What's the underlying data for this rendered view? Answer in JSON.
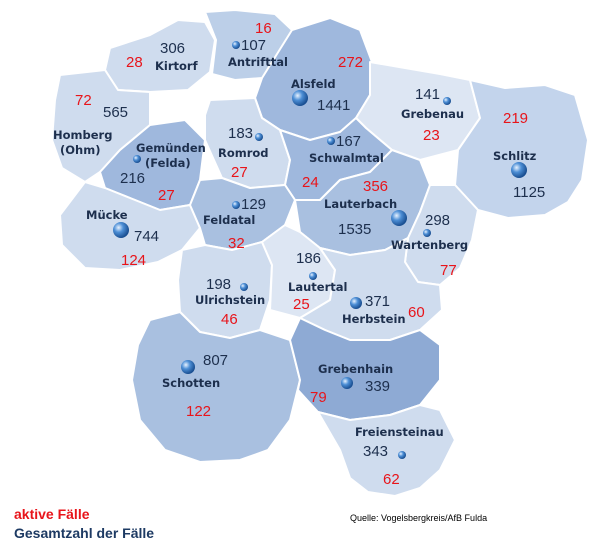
{
  "legend": {
    "active_label": "aktive Fälle",
    "total_label": "Gesamtzahl der Fälle"
  },
  "source": "Quelle: Vogelsbergkreis/AfB Fulda",
  "colors": {
    "active": "#e8141a",
    "total": "#1d2f4d",
    "region_light": "#cfdcee",
    "region_mid": "#a9c0e0",
    "region_dark": "#8eaad4"
  },
  "municipalities": [
    {
      "id": "kirtorf",
      "name": "Kirtorf",
      "total": "306",
      "active": "28"
    },
    {
      "id": "antrifttal",
      "name": "Antrifttal",
      "total": "107",
      "active": "16"
    },
    {
      "id": "alsfeld",
      "name": "Alsfeld",
      "total": "1441",
      "active": "272"
    },
    {
      "id": "grebenau",
      "name": "Grebenau",
      "total": "141",
      "active": "23"
    },
    {
      "id": "schlitz",
      "name": "Schlitz",
      "total": "1125",
      "active": "219"
    },
    {
      "id": "homberg",
      "name": "Homberg",
      "name2": "(Ohm)",
      "total": "565",
      "active": "72"
    },
    {
      "id": "gemuenden",
      "name": "Gemünden",
      "name2": "(Felda)",
      "total": "216",
      "active": "27"
    },
    {
      "id": "romrod",
      "name": "Romrod",
      "total": "183",
      "active": "27"
    },
    {
      "id": "schwalmtal",
      "name": "Schwalmtal",
      "total": "167",
      "active": "24"
    },
    {
      "id": "muecke",
      "name": "Mücke",
      "total": "744",
      "active": "124"
    },
    {
      "id": "feldatal",
      "name": "Feldatal",
      "total": "129",
      "active": "32"
    },
    {
      "id": "lauterbach",
      "name": "Lauterbach",
      "total": "1535",
      "active": "356"
    },
    {
      "id": "wartenberg",
      "name": "Wartenberg",
      "total": "298",
      "active": "77"
    },
    {
      "id": "ulrichstein",
      "name": "Ulrichstein",
      "total": "198",
      "active": "46"
    },
    {
      "id": "lautertal",
      "name": "Lautertal",
      "total": "186",
      "active": "25"
    },
    {
      "id": "herbstein",
      "name": "Herbstein",
      "total": "371",
      "active": "60"
    },
    {
      "id": "schotten",
      "name": "Schotten",
      "total": "807",
      "active": "122"
    },
    {
      "id": "grebenhain",
      "name": "Grebenhain",
      "total": "339",
      "active": "79"
    },
    {
      "id": "freiensteinau",
      "name": "Freiensteinau",
      "total": "343",
      "active": "62"
    }
  ]
}
